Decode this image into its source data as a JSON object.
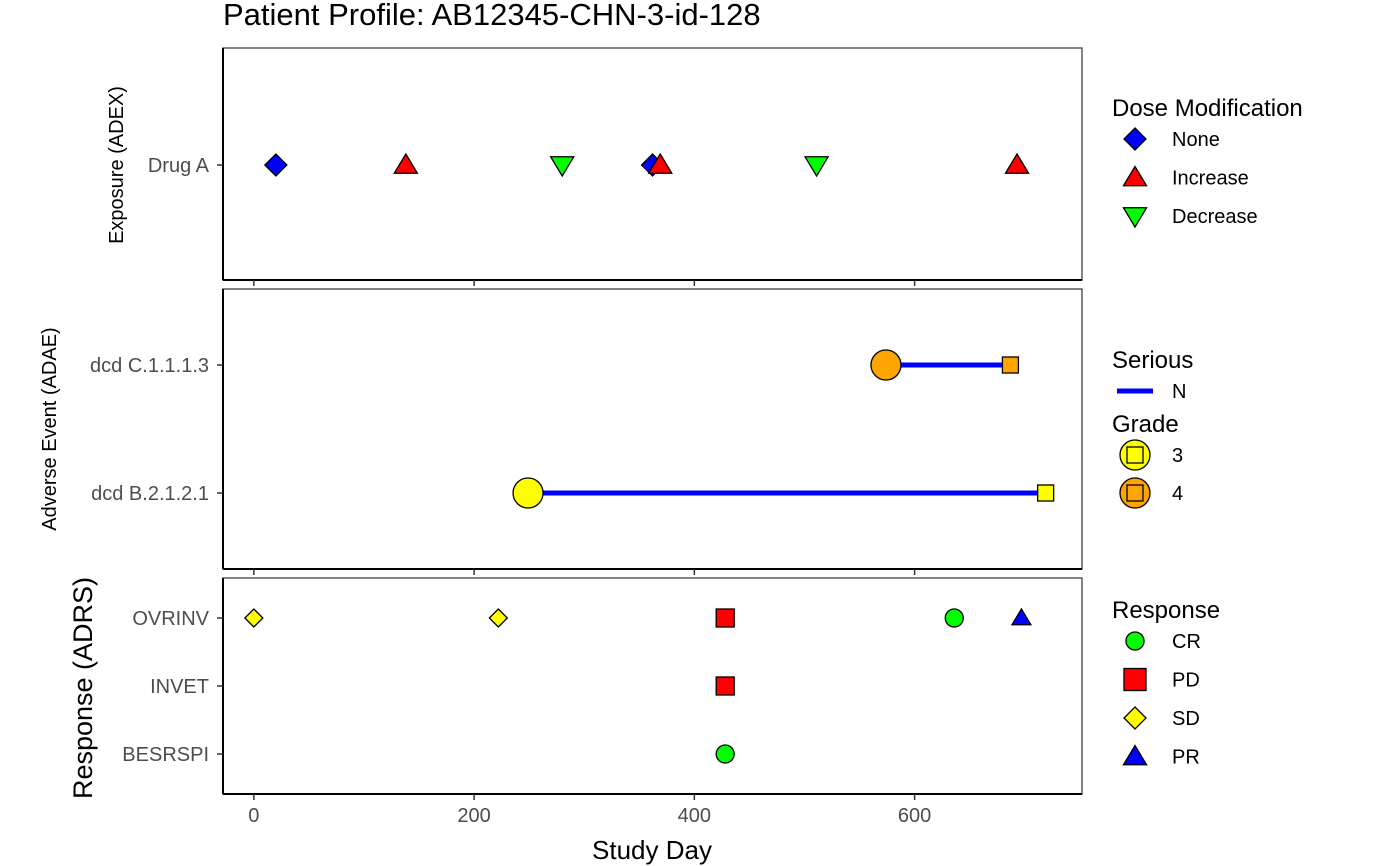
{
  "chart_data": {
    "type": "scatter",
    "title": "Patient Profile:  AB12345-CHN-3-id-128",
    "xlabel": "Study Day",
    "xlim": [
      -28,
      752
    ],
    "xticks": [
      0,
      200,
      400,
      600
    ],
    "colors": {
      "None": "#0000ff",
      "Increase": "#ff0000",
      "Decrease": "#00ff00",
      "grade3": "#ffff00",
      "grade4": "#ffa500",
      "serious_line": "#0000ff",
      "CR": "#00ff00",
      "PD": "#ff0000",
      "SD": "#ffff00",
      "PR": "#0000ff"
    },
    "panels": [
      {
        "key": "exposure",
        "ylabel": "Exposure (ADEX)",
        "categories": [
          "Drug A"
        ],
        "points": [
          {
            "category": "Drug A",
            "x": 20,
            "group": "None"
          },
          {
            "category": "Drug A",
            "x": 138,
            "group": "Increase"
          },
          {
            "category": "Drug A",
            "x": 280,
            "group": "Decrease"
          },
          {
            "category": "Drug A",
            "x": 362,
            "group": "None"
          },
          {
            "category": "Drug A",
            "x": 369,
            "group": "Increase"
          },
          {
            "category": "Drug A",
            "x": 511,
            "group": "Decrease"
          },
          {
            "category": "Drug A",
            "x": 693,
            "group": "Increase"
          }
        ]
      },
      {
        "key": "adverse",
        "ylabel": "Adverse Event (ADAE)",
        "categories": [
          "dcd C.1.1.1.3",
          "dcd B.2.1.2.1"
        ],
        "segments": [
          {
            "category": "dcd C.1.1.1.3",
            "start": 574,
            "end": 687,
            "serious": "N",
            "grade": "4"
          },
          {
            "category": "dcd B.2.1.2.1",
            "start": 249,
            "end": 719,
            "serious": "N",
            "grade": "3"
          }
        ]
      },
      {
        "key": "response",
        "ylabel": "Response (ADRS)",
        "categories": [
          "OVRINV",
          "INVET",
          "BESRSPI"
        ],
        "points": [
          {
            "category": "OVRINV",
            "x": 0,
            "group": "SD"
          },
          {
            "category": "OVRINV",
            "x": 222,
            "group": "SD"
          },
          {
            "category": "OVRINV",
            "x": 428,
            "group": "PD"
          },
          {
            "category": "OVRINV",
            "x": 636,
            "group": "CR"
          },
          {
            "category": "OVRINV",
            "x": 697,
            "group": "PR"
          },
          {
            "category": "INVET",
            "x": 428,
            "group": "PD"
          },
          {
            "category": "BESRSPI",
            "x": 428,
            "group": "CR"
          }
        ]
      }
    ],
    "legends": {
      "dose": {
        "title": "Dose Modification",
        "items": [
          {
            "label": "None",
            "shape": "diamond",
            "color": "#0000ff"
          },
          {
            "label": "Increase",
            "shape": "triangle-up",
            "color": "#ff0000"
          },
          {
            "label": "Decrease",
            "shape": "triangle-down",
            "color": "#00ff00"
          }
        ]
      },
      "serious": {
        "title": "Serious",
        "items": [
          {
            "label": "N",
            "shape": "line",
            "color": "#0000ff"
          }
        ]
      },
      "grade": {
        "title": "Grade",
        "items": [
          {
            "label": "3",
            "shape": "circle-square",
            "color": "#ffff00"
          },
          {
            "label": "4",
            "shape": "circle-square",
            "color": "#ffa500"
          }
        ]
      },
      "response": {
        "title": "Response",
        "items": [
          {
            "label": "CR",
            "shape": "circle",
            "color": "#00ff00"
          },
          {
            "label": "PD",
            "shape": "square",
            "color": "#ff0000"
          },
          {
            "label": "SD",
            "shape": "diamond",
            "color": "#ffff00"
          },
          {
            "label": "PR",
            "shape": "triangle-up",
            "color": "#0000ff"
          }
        ]
      }
    }
  }
}
